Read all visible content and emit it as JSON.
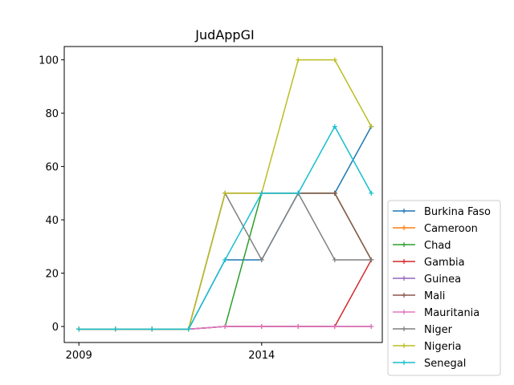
{
  "chart_data": {
    "type": "line",
    "title": "JudAppGI",
    "xlabel": "",
    "ylabel": "",
    "x": [
      2009,
      2010,
      2011,
      2012,
      2013,
      2014,
      2015,
      2016,
      2017
    ],
    "xlim": [
      2008.6,
      2017.3
    ],
    "ylim": [
      -6,
      105
    ],
    "xticks": [
      2009,
      2014
    ],
    "yticks": [
      0,
      20,
      40,
      60,
      80,
      100
    ],
    "grid": false,
    "legend_position": "lower-right outside",
    "series": [
      {
        "name": "Burkina Faso",
        "color": "#1f77b4",
        "values": [
          -1,
          -1,
          -1,
          -1,
          25,
          25,
          50,
          50,
          75
        ]
      },
      {
        "name": "Cameroon",
        "color": "#ff7f0e",
        "values": [
          -1,
          -1,
          -1,
          -1,
          0,
          0,
          0,
          0,
          0
        ]
      },
      {
        "name": "Chad",
        "color": "#2ca02c",
        "values": [
          -1,
          -1,
          -1,
          -1,
          0,
          50,
          50,
          50,
          25
        ]
      },
      {
        "name": "Gambia",
        "color": "#d62728",
        "values": [
          -1,
          -1,
          -1,
          -1,
          0,
          0,
          0,
          0,
          25
        ]
      },
      {
        "name": "Guinea",
        "color": "#9467bd",
        "values": [
          -1,
          -1,
          -1,
          -1,
          0,
          0,
          0,
          0,
          0
        ]
      },
      {
        "name": "Mali",
        "color": "#8c564b",
        "values": [
          -1,
          -1,
          -1,
          -1,
          50,
          50,
          50,
          50,
          25
        ]
      },
      {
        "name": "Mauritania",
        "color": "#e377c2",
        "values": [
          -1,
          -1,
          -1,
          -1,
          0,
          0,
          0,
          0,
          0
        ]
      },
      {
        "name": "Niger",
        "color": "#7f7f7f",
        "values": [
          -1,
          -1,
          -1,
          -1,
          50,
          25,
          50,
          25,
          25
        ]
      },
      {
        "name": "Nigeria",
        "color": "#bcbd22",
        "values": [
          -1,
          -1,
          -1,
          -1,
          50,
          50,
          100,
          100,
          75
        ]
      },
      {
        "name": "Senegal",
        "color": "#17becf",
        "values": [
          -1,
          -1,
          -1,
          -1,
          25,
          50,
          50,
          75,
          50
        ]
      }
    ]
  }
}
